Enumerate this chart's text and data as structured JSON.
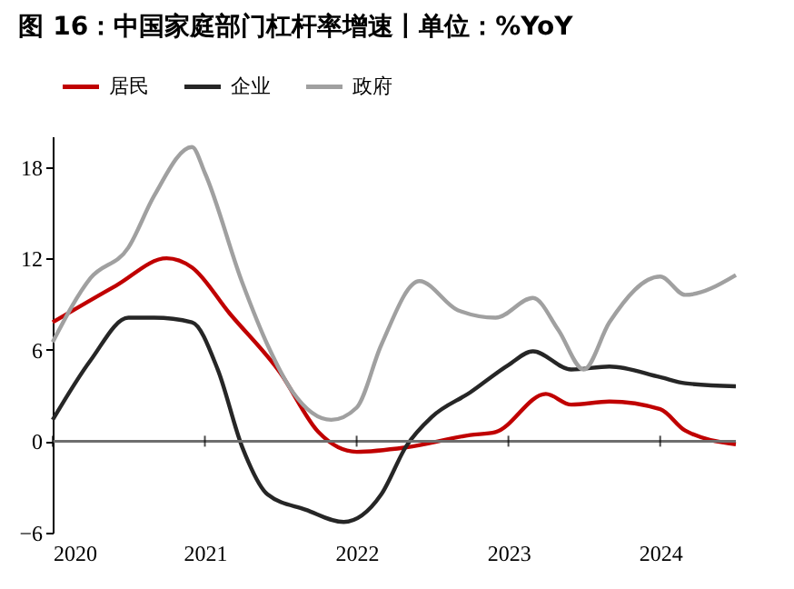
{
  "chart_data": {
    "type": "line",
    "title": "图 16：中国家庭部门杠杆率增速丨单位：%YoY",
    "series": [
      {
        "name": "居民",
        "color": "#c00000",
        "x": [
          "2020-01",
          "2020-06",
          "2020-10",
          "2020-12",
          "2021-03",
          "2021-07",
          "2021-10",
          "2022-01",
          "2022-05",
          "2022-10",
          "2022-12",
          "2023-04",
          "2023-06",
          "2023-09",
          "2024-01",
          "2024-03",
          "2024-07"
        ],
        "values": [
          7.8,
          10.2,
          12.0,
          11.4,
          8.4,
          4.5,
          0.6,
          -0.7,
          -0.4,
          0.4,
          0.6,
          3.1,
          2.4,
          2.6,
          2.1,
          0.7,
          -0.2
        ]
      },
      {
        "name": "企业",
        "color": "#262626",
        "x": [
          "2020-01",
          "2020-04",
          "2020-07",
          "2020-09",
          "2020-12",
          "2021-02",
          "2021-04",
          "2021-06",
          "2021-09",
          "2021-12",
          "2022-03",
          "2022-05",
          "2022-07",
          "2022-10",
          "2023-01",
          "2023-03",
          "2023-06",
          "2023-09",
          "2024-01",
          "2024-03",
          "2024-07"
        ],
        "values": [
          1.4,
          5.3,
          8.1,
          8.1,
          7.8,
          4.7,
          -0.4,
          -3.5,
          -4.5,
          -5.3,
          -3.5,
          -0.3,
          1.6,
          3.2,
          5.0,
          5.9,
          4.7,
          4.9,
          4.2,
          3.8,
          3.6
        ]
      },
      {
        "name": "政府",
        "color": "#a0a0a0",
        "x": [
          "2020-01",
          "2020-04",
          "2020-07",
          "2020-09",
          "2020-12",
          "2021-01",
          "2021-04",
          "2021-06",
          "2021-08",
          "2021-11",
          "2022-01",
          "2022-03",
          "2022-06",
          "2022-09",
          "2022-12",
          "2023-03",
          "2023-05",
          "2023-07",
          "2023-09",
          "2024-01",
          "2024-03",
          "2024-07"
        ],
        "values": [
          6.5,
          10.7,
          12.7,
          16.1,
          19.3,
          17.6,
          10.4,
          6.3,
          3.2,
          1.4,
          2.2,
          6.3,
          10.5,
          8.6,
          8.1,
          9.4,
          7.3,
          4.7,
          7.8,
          10.8,
          9.6,
          10.9
        ]
      }
    ],
    "xlim": [
      "2020-01-01",
      "2024-07-01"
    ],
    "xticks": [
      {
        "value": "2020-01-01",
        "label": "2020"
      },
      {
        "value": "2021-01-01",
        "label": "2021"
      },
      {
        "value": "2022-01-01",
        "label": "2022"
      },
      {
        "value": "2023-01-01",
        "label": "2023"
      },
      {
        "value": "2024-01-01",
        "label": "2024"
      }
    ],
    "ylim": [
      -6,
      20
    ],
    "yticks": [
      -6,
      0,
      6,
      12,
      18
    ],
    "ref_lines": [
      {
        "axis": "y",
        "value": 0,
        "color": "#6e6e6e"
      }
    ],
    "grid": false,
    "legend": "top",
    "marker": "none",
    "line_style": "solid"
  }
}
